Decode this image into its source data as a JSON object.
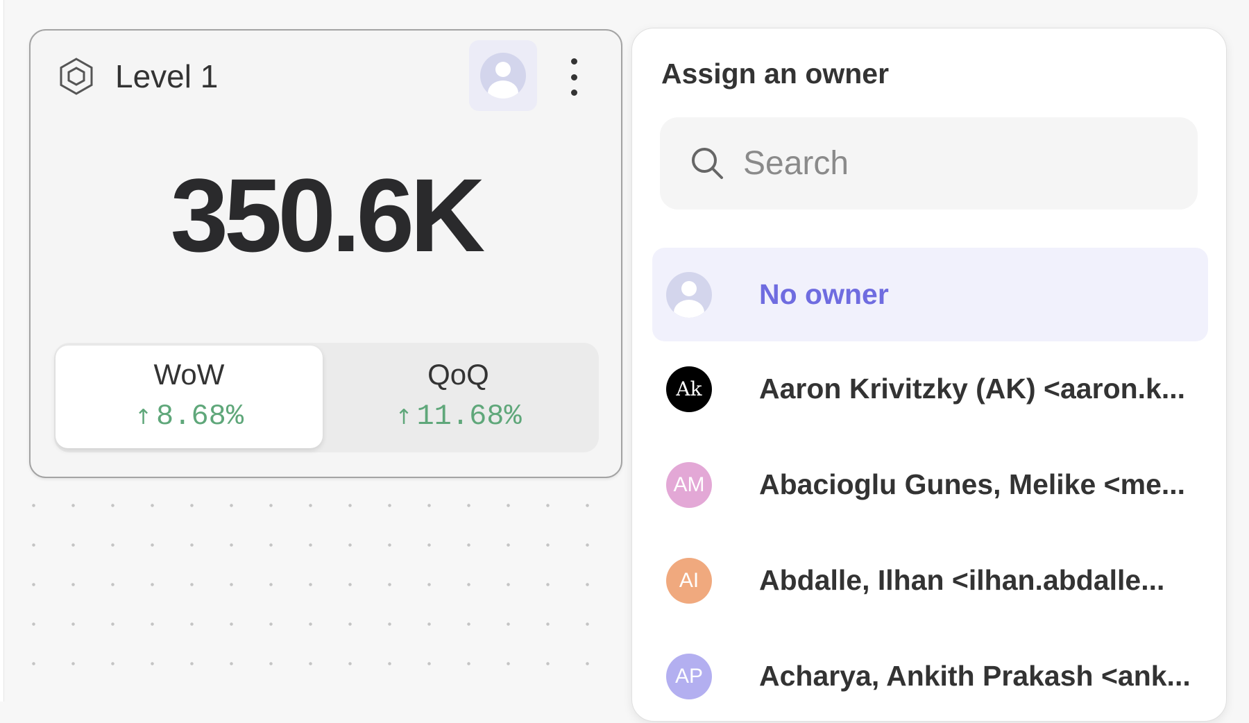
{
  "card": {
    "title": "Level 1",
    "value": "350.6K",
    "icons": {
      "type": "hexagon-icon",
      "owner": "user-avatar-icon",
      "menu": "more-vertical-icon"
    },
    "comparisons": [
      {
        "label": "WoW",
        "arrow": "↑",
        "value": "8.68%",
        "active": true
      },
      {
        "label": "QoQ",
        "arrow": "↑",
        "value": "11.68%",
        "active": false
      }
    ],
    "positive_color": "#5fa77a"
  },
  "owner_menu": {
    "title": "Assign an owner",
    "search_placeholder": "Search",
    "search_value": "",
    "accent_color": "#6f6ce0",
    "options": [
      {
        "label": "No owner",
        "initials": "",
        "color": "#d3d5ec",
        "selected": true
      },
      {
        "label": "Aaron Krivitzky (AK) <aaron.k...",
        "initials": "Ak",
        "color": "#000000",
        "selected": false
      },
      {
        "label": "Abacioglu Gunes, Melike <me...",
        "initials": "AM",
        "color": "#e3a8d6",
        "selected": false
      },
      {
        "label": "Abdalle, Ilhan <ilhan.abdalle...",
        "initials": "AI",
        "color": "#f0a97e",
        "selected": false
      },
      {
        "label": "Acharya, Ankith Prakash <ank...",
        "initials": "AP",
        "color": "#b3aff0",
        "selected": false
      }
    ]
  }
}
